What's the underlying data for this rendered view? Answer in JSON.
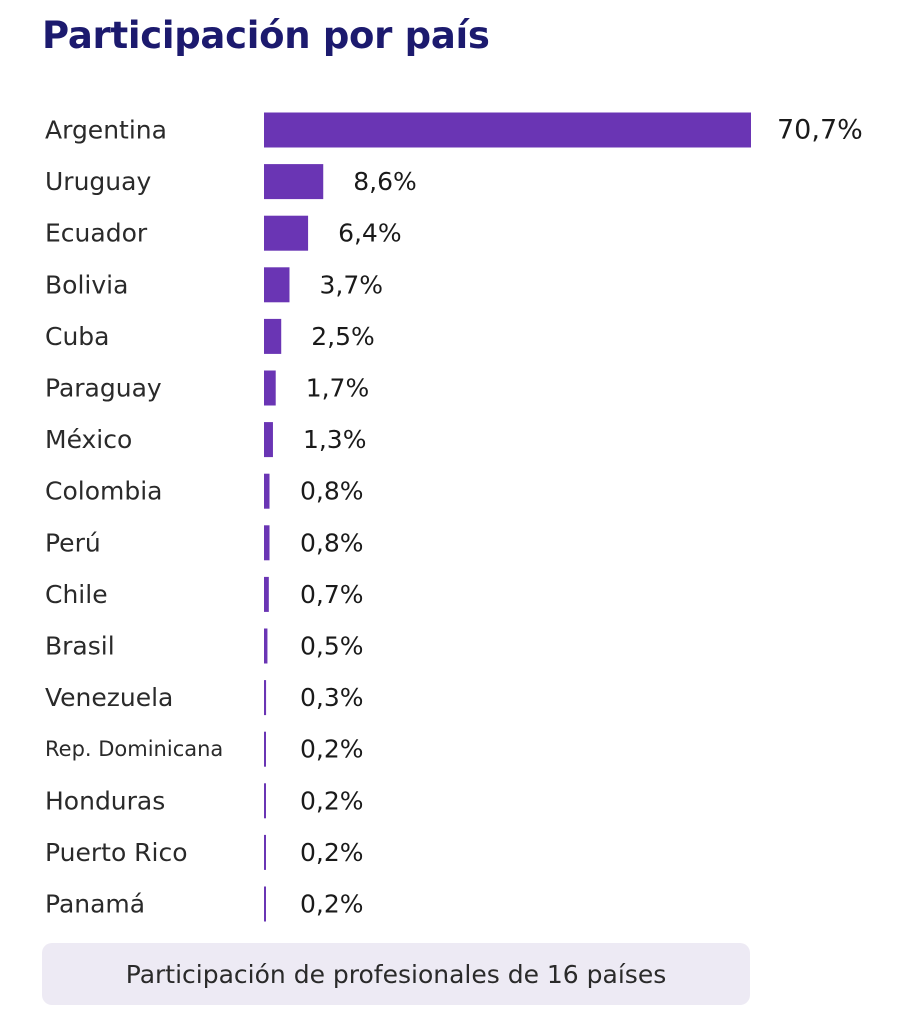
{
  "chart_data": {
    "type": "bar",
    "orientation": "horizontal",
    "title": "Participación por país",
    "categories": [
      "Argentina",
      "Uruguay",
      "Ecuador",
      "Bolivia",
      "Cuba",
      "Paraguay",
      "México",
      "Colombia",
      "Perú",
      "Chile",
      "Brasil",
      "Venezuela",
      "Rep. Dominicana",
      "Honduras",
      "Puerto Rico",
      "Panamá"
    ],
    "values": [
      70.7,
      8.6,
      6.4,
      3.7,
      2.5,
      1.7,
      1.3,
      0.8,
      0.8,
      0.7,
      0.5,
      0.3,
      0.2,
      0.2,
      0.2,
      0.2
    ],
    "value_labels": [
      "70,7%",
      "8,6%",
      "6,4%",
      "3,7%",
      "2,5%",
      "1,7%",
      "1,3%",
      "0,8%",
      "0,8%",
      "0,7%",
      "0,5%",
      "0,3%",
      "0,2%",
      "0,2%",
      "0,2%",
      "0,2%"
    ],
    "unit": "%",
    "bar_color": "#6a35b4",
    "grid": false,
    "legend": "none"
  },
  "caption": "Participación de profesionales de 16 países",
  "colors": {
    "title": "#1c1a6e",
    "bar": "#6a35b4",
    "caption_background": "#edeaf4"
  }
}
